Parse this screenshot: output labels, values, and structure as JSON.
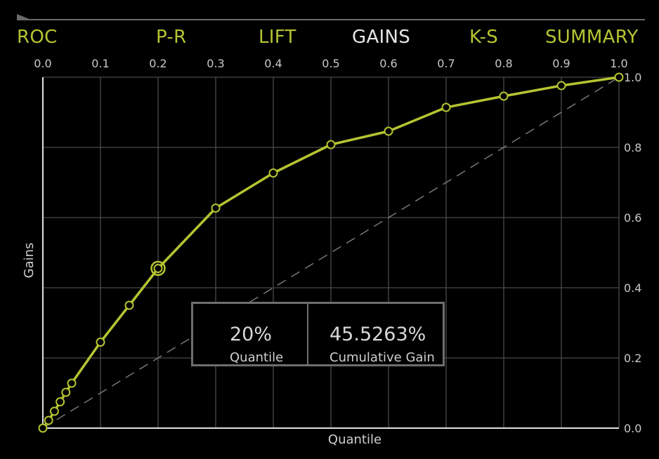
{
  "tabs": [
    {
      "label": "ROC",
      "active": false
    },
    {
      "label": "P-R",
      "active": false
    },
    {
      "label": "LIFT",
      "active": false
    },
    {
      "label": "GAINS",
      "active": true
    },
    {
      "label": "K-S",
      "active": false
    },
    {
      "label": "SUMMARY",
      "active": false
    }
  ],
  "colors": {
    "accent": "#b5c431",
    "active_tab": "#e6e6e6",
    "grid": "#4a4a4a",
    "baseline": "#777777"
  },
  "tooltip": {
    "quantile_value": "20%",
    "quantile_label": "Quantile",
    "gain_value": "45.5263%",
    "gain_label": "Cumulative Gain"
  },
  "chart_data": {
    "type": "line",
    "xlabel": "Quantile",
    "ylabel": "Gains",
    "xlim": [
      0,
      1
    ],
    "ylim": [
      0,
      1
    ],
    "x_ticks": [
      "0.0",
      "0.1",
      "0.2",
      "0.3",
      "0.4",
      "0.5",
      "0.6",
      "0.7",
      "0.8",
      "0.9",
      "1.0"
    ],
    "y_ticks": [
      "0.0",
      "0.2",
      "0.4",
      "0.6",
      "0.8",
      "1.0"
    ],
    "x_ticks_position": "top",
    "y_ticks_position": "right",
    "grid": true,
    "series": [
      {
        "x": [
          0.0,
          0.01,
          0.02,
          0.03,
          0.04,
          0.05,
          0.1,
          0.15,
          0.2,
          0.3,
          0.4,
          0.5,
          0.6,
          0.7,
          0.8,
          0.9,
          1.0
        ],
        "y": [
          0.0,
          0.022,
          0.048,
          0.075,
          0.102,
          0.128,
          0.245,
          0.35,
          0.455,
          0.627,
          0.727,
          0.808,
          0.846,
          0.914,
          0.946,
          0.976,
          1.0
        ]
      }
    ],
    "highlight": {
      "x": 0.2,
      "y": 0.455263
    },
    "baseline": {
      "style": "dashed",
      "from": [
        0,
        0
      ],
      "to": [
        1,
        1
      ]
    }
  }
}
